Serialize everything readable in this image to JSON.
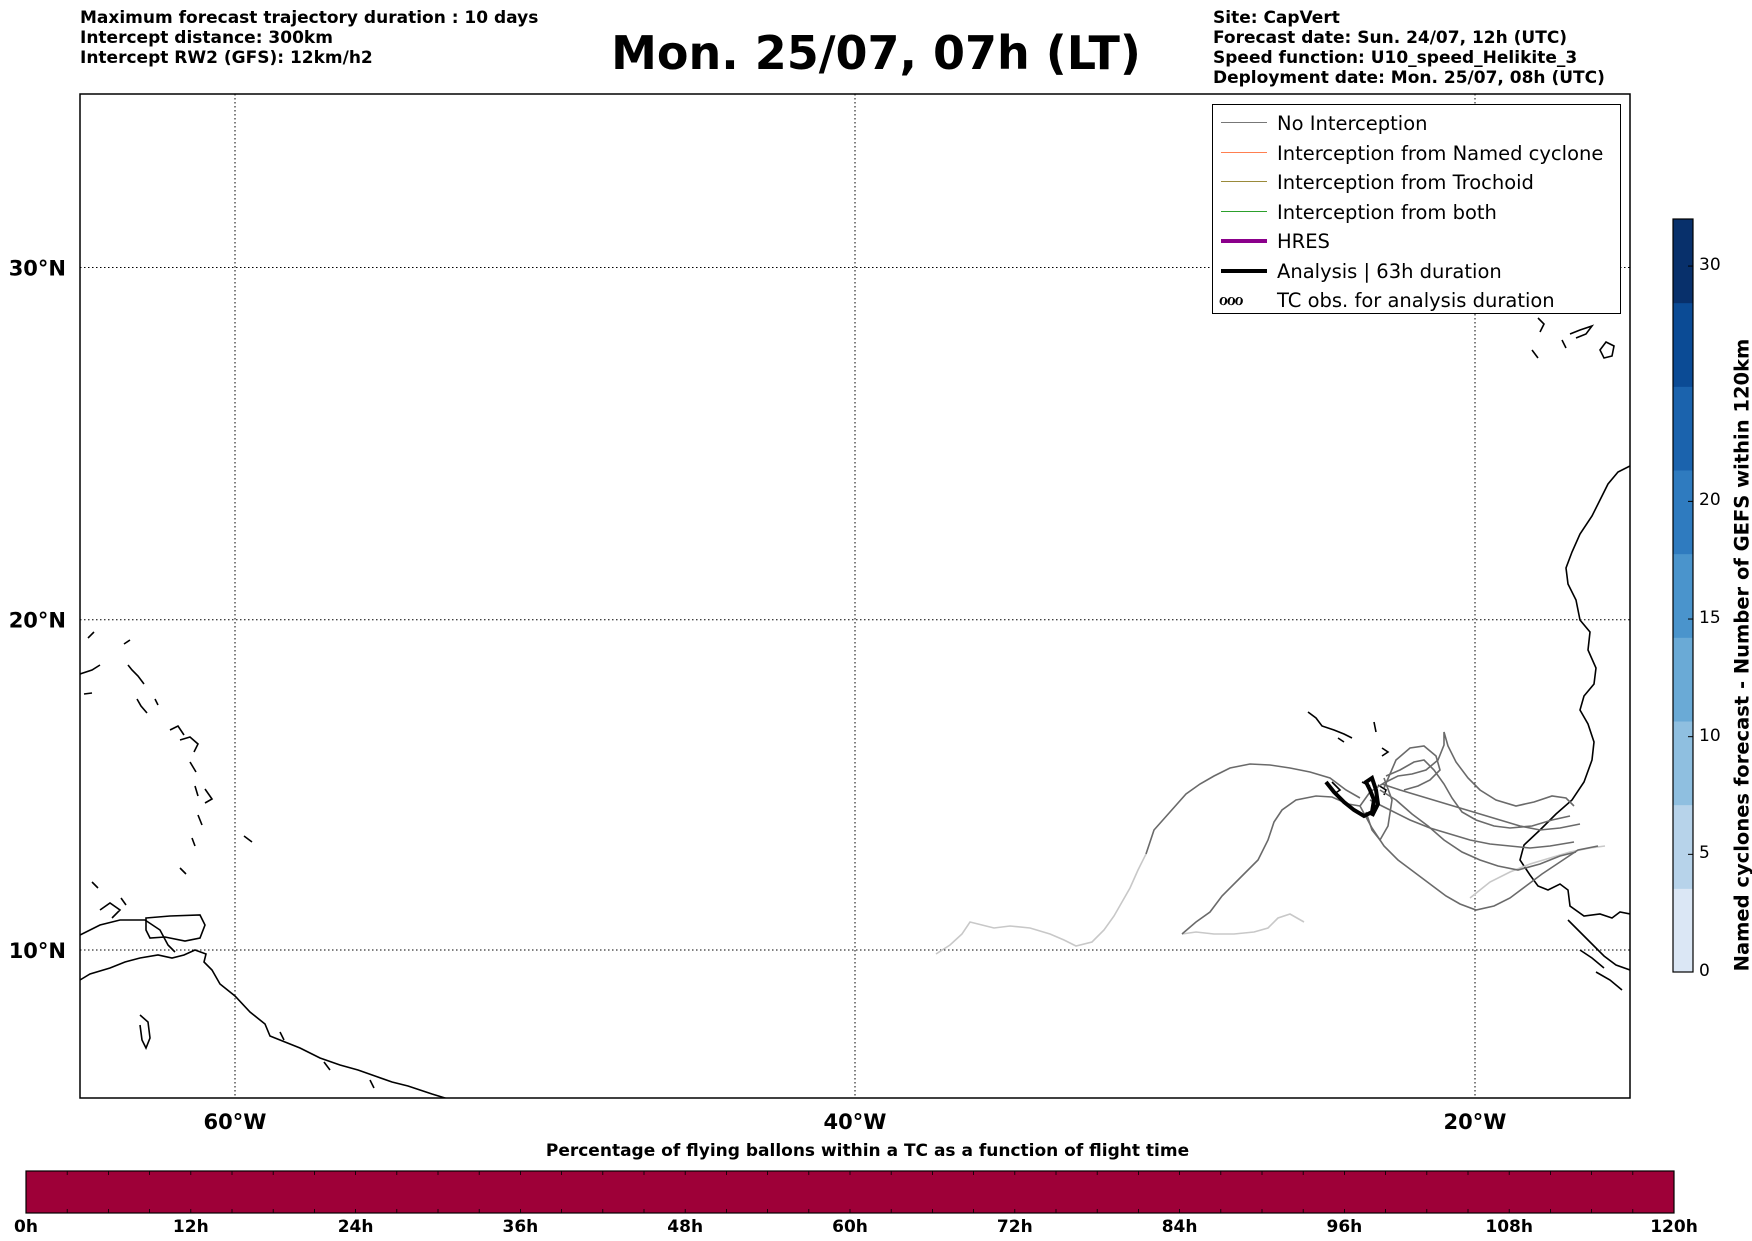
{
  "header_left": {
    "line1": "Maximum forecast trajectory duration : 10 days",
    "line2": "Intercept distance: 300km",
    "line3": "Intercept RW2 (GFS):  12km/h2"
  },
  "title": "Mon. 25/07, 07h (LT)",
  "header_right": {
    "line1": "Site: CapVert",
    "line2": "Forecast date: Sun. 24/07, 12h (UTC)",
    "line3": "Speed function: U10_speed_Helikite_3",
    "line4": "Deployment date: Mon. 25/07, 08h (UTC)"
  },
  "map": {
    "lon_range": [
      -65,
      -15
    ],
    "lat_range": [
      5.4,
      34.6
    ],
    "lat_ticks": [
      {
        "value": 30,
        "label": "30°N"
      },
      {
        "value": 20,
        "label": "20°N"
      },
      {
        "value": 10,
        "label": "10°N"
      }
    ],
    "lon_ticks": [
      {
        "value": -60,
        "label": "60°W"
      },
      {
        "value": -40,
        "label": "40°W"
      },
      {
        "value": -20,
        "label": "20°W"
      }
    ],
    "grid": true
  },
  "legend": {
    "items": [
      {
        "label": "No Interception",
        "color": "#777777",
        "width": 1.5
      },
      {
        "label": "Interception from Named cyclone",
        "color": "#ff7f50",
        "width": 1.5
      },
      {
        "label": "Interception from Trochoid",
        "color": "#9a8a3a",
        "width": 1.5
      },
      {
        "label": "Interception from both",
        "color": "#2ca02c",
        "width": 1.5
      },
      {
        "label": "HRES",
        "color": "#8b008b",
        "width": 4
      },
      {
        "label": "Analysis | 63h duration",
        "color": "#000000",
        "width": 4
      }
    ],
    "tc_glyph": "ℴℴℴ",
    "tc_label": "TC obs. for analysis duration"
  },
  "colorbar_right": {
    "label": "Named cyclones forecast - Number of GEFS within 120km",
    "min": 0,
    "max": 32,
    "ticks": [
      0,
      5,
      10,
      15,
      20,
      30
    ],
    "colors": [
      "#dbe7f5",
      "#b7d3ea",
      "#8fbfe0",
      "#6aaad6",
      "#4a94cc",
      "#2f7bbf",
      "#1b63ad",
      "#0b4b95",
      "#08306b"
    ]
  },
  "colorbar_bottom": {
    "title": "Percentage of flying ballons within a TC as a function of flight time",
    "fill_color": "#9e0038",
    "ticks": [
      "0h",
      "12h",
      "24h",
      "36h",
      "48h",
      "60h",
      "72h",
      "84h",
      "96h",
      "108h",
      "120h"
    ]
  }
}
